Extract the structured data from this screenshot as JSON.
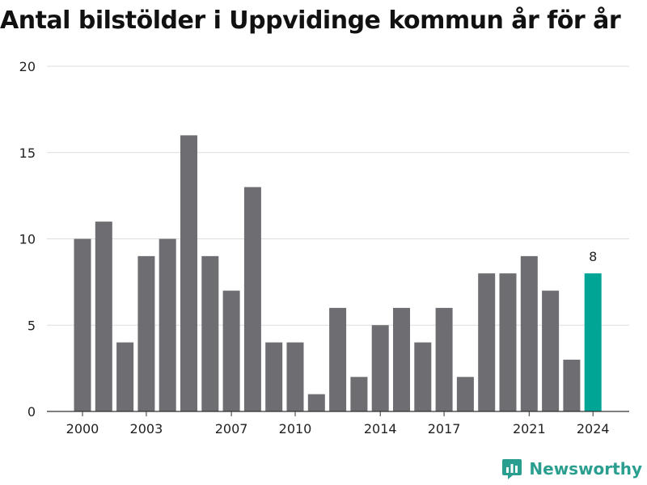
{
  "chart_data": {
    "type": "bar",
    "title": "Antal bilstölder i Uppvidinge kommun år för år",
    "xlabel": "",
    "ylabel": "",
    "categories": [
      2000,
      2001,
      2002,
      2003,
      2004,
      2005,
      2006,
      2007,
      2008,
      2009,
      2010,
      2011,
      2012,
      2013,
      2014,
      2015,
      2016,
      2017,
      2018,
      2019,
      2020,
      2021,
      2022,
      2023,
      2024
    ],
    "values": [
      10,
      11,
      4,
      9,
      10,
      16,
      9,
      7,
      13,
      4,
      4,
      1,
      6,
      2,
      5,
      6,
      4,
      6,
      2,
      8,
      8,
      9,
      7,
      3,
      8
    ],
    "x_tick_labels": [
      "2000",
      "2003",
      "2007",
      "2010",
      "2014",
      "2017",
      "2021",
      "2024"
    ],
    "y_ticks": [
      "0",
      "5",
      "10",
      "15",
      "20"
    ],
    "ylim": [
      0,
      20
    ],
    "grid": true,
    "highlight": {
      "category": 2024,
      "label": "8",
      "color": "#00a596"
    },
    "bar_color": "#6e6d72"
  },
  "branding": {
    "name": "Newsworthy",
    "logo_icon": "newsworthy-logo-icon"
  }
}
